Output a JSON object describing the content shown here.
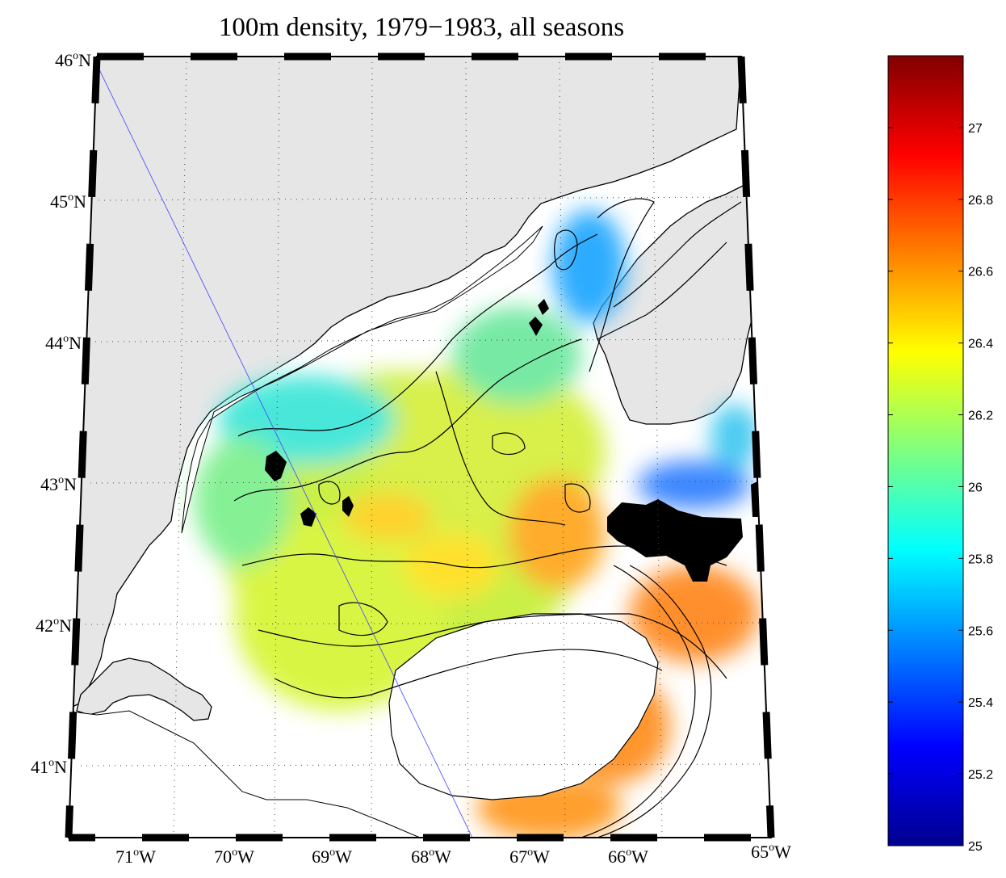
{
  "title": "100m density, 1979−1983, all seasons",
  "map": {
    "lat_ticks": [
      {
        "value": 46,
        "deg": "46",
        "sup": "o",
        "hem": "N"
      },
      {
        "value": 45,
        "deg": "45",
        "sup": "o",
        "hem": "N"
      },
      {
        "value": 44,
        "deg": "44",
        "sup": "o",
        "hem": "N"
      },
      {
        "value": 43,
        "deg": "43",
        "sup": "o",
        "hem": "N"
      },
      {
        "value": 42,
        "deg": "42",
        "sup": "o",
        "hem": "N"
      },
      {
        "value": 41,
        "deg": "41",
        "sup": "o",
        "hem": "N"
      }
    ],
    "lon_ticks": [
      {
        "value": -71,
        "deg": "71",
        "sup": "o",
        "hem": "W"
      },
      {
        "value": -70,
        "deg": "70",
        "sup": "o",
        "hem": "W"
      },
      {
        "value": -69,
        "deg": "69",
        "sup": "o",
        "hem": "W"
      },
      {
        "value": -68,
        "deg": "68",
        "sup": "o",
        "hem": "W"
      },
      {
        "value": -67,
        "deg": "67",
        "sup": "o",
        "hem": "W"
      },
      {
        "value": -66,
        "deg": "66",
        "sup": "o",
        "hem": "W"
      },
      {
        "value": -65,
        "deg": "65",
        "sup": "o",
        "hem": "W"
      }
    ],
    "land_color": "#e6e6e6",
    "grid": "dotted"
  },
  "colorbar": {
    "min": 25,
    "max": 27.2,
    "ticks": [
      "25",
      "25.2",
      "25.4",
      "25.6",
      "25.8",
      "26",
      "26.2",
      "26.4",
      "26.6",
      "26.8",
      "27"
    ],
    "colormap": "jet"
  }
}
